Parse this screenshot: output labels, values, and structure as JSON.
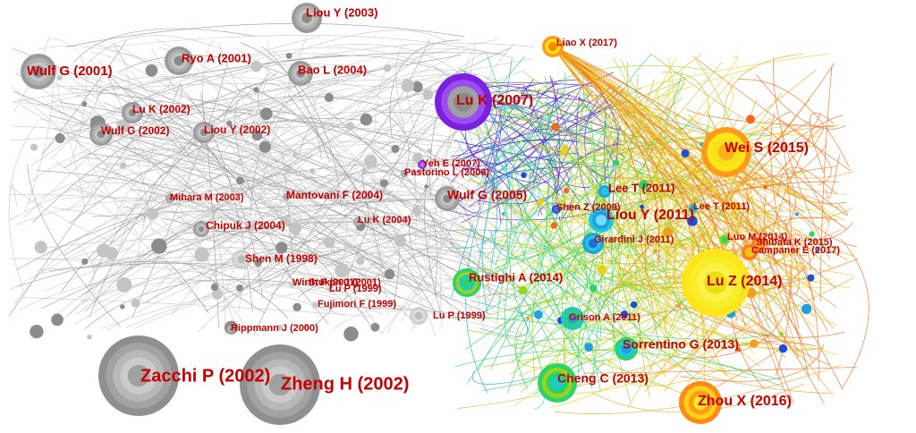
{
  "nodes": [
    {
      "label": "Liou Y (2003)"
    },
    {
      "label": "Ryo A (2001)"
    },
    {
      "label": "Wulf G (2001)"
    },
    {
      "label": "Bao L (2004)"
    },
    {
      "label": "Lu K (2002)"
    },
    {
      "label": "Wulf G (2002)"
    },
    {
      "label": "Liou Y (2002)"
    },
    {
      "label": "Mihara M (2003)"
    },
    {
      "label": "Mantovani F (2004)"
    },
    {
      "label": "Chipuk J (2004)"
    },
    {
      "label": "Lu K (2004)"
    },
    {
      "label": "Shen M (1998)"
    },
    {
      "label": "Wirth P (2001)"
    },
    {
      "label": "Stuken J (2001)"
    },
    {
      "label": "Lu P (1999)"
    },
    {
      "label": "Fujimori F (1999)"
    },
    {
      "label": "Rippmann J (2000)"
    },
    {
      "label": "Lu P (1999)"
    },
    {
      "label": "Zacchi P (2002)"
    },
    {
      "label": "Zheng H (2002)"
    },
    {
      "label": "Yeh E (2007)"
    },
    {
      "label": "Pastorino L (2006)"
    },
    {
      "label": "Lu K (2007)"
    },
    {
      "label": "Wulf G (2005)"
    },
    {
      "label": "Liao X (2017)"
    },
    {
      "label": "Wei S (2015)"
    },
    {
      "label": "Lee T (2011)"
    },
    {
      "label": "Shen Z (2009)"
    },
    {
      "label": "Liou Y (2011)"
    },
    {
      "label": "Lee T (2011)"
    },
    {
      "label": "Girardini J (2011)"
    },
    {
      "label": "Luo M (2014)"
    },
    {
      "label": "Shibata K (2015)"
    },
    {
      "label": "Campaner E (2017)"
    },
    {
      "label": "Lu Z (2014)"
    },
    {
      "label": "Rustighi A (2014)"
    },
    {
      "label": "Grison A (2011)"
    },
    {
      "label": "Sorrentino G (2013)"
    },
    {
      "label": "Cheng C (2013)"
    },
    {
      "label": "Zhou X (2016)"
    }
  ]
}
